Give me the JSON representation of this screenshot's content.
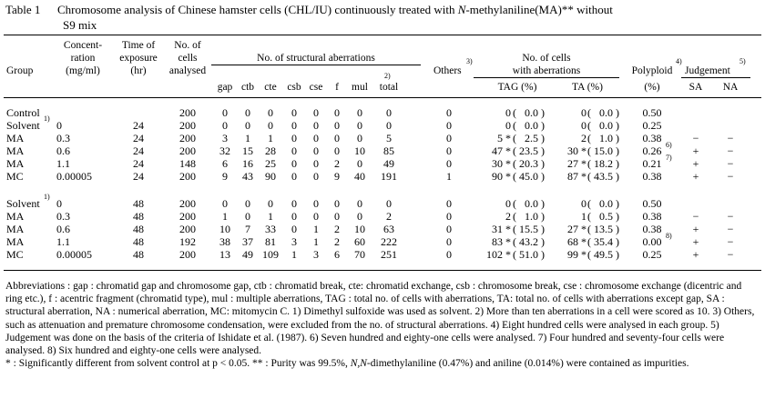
{
  "caption": {
    "label": "Table 1",
    "line1_a": "Chromosome analysis of Chinese hamster cells (CHL/IU) continuously treated with ",
    "line1_italic": "N",
    "line1_b": "-methylaniline(MA)** without",
    "line2": "S9 mix"
  },
  "headers": {
    "group": "Group",
    "conc1": "Concent-",
    "conc2": "ration",
    "conc3": "(mg/ml)",
    "time1": "Time of",
    "time2": "exposure",
    "time3": "(hr)",
    "cells1": "No. of",
    "cells2": "cells",
    "cells3": "analysed",
    "struct": "No. of structural aberrations",
    "gap": "gap",
    "ctb": "ctb",
    "cte": "cte",
    "csb": "csb",
    "cse": "cse",
    "f": "f",
    "mul": "mul",
    "mul_sup": "2)",
    "total": "total",
    "others": "Others",
    "others_sup": "3)",
    "nwa1": "No. of cells",
    "nwa2": "with aberrations",
    "tag": "TAG (%)",
    "ta": "TA (%)",
    "poly1": "Polyploid",
    "poly_sup": "4)",
    "poly2": "(%)",
    "judge": "Judgement",
    "judge_sup": "5)",
    "sa": "SA",
    "na": "NA"
  },
  "rows": [
    {
      "group": "Control",
      "sup": "",
      "conc": "",
      "time": "",
      "cells": "200",
      "gap": "0",
      "ctb": "0",
      "cte": "0",
      "csb": "0",
      "cse": "0",
      "f": "0",
      "mul": "0",
      "total": "0",
      "others": "0",
      "tag_n": "0",
      "tag_p": "(   0.0 )",
      "ta_n": "0",
      "ta_p": "(   0.0 )",
      "poly": "0.50",
      "poly_sup": "",
      "sa": "",
      "na": ""
    },
    {
      "group": "Solvent",
      "sup": "1)",
      "conc": "0",
      "time": "24",
      "cells": "200",
      "gap": "0",
      "ctb": "0",
      "cte": "0",
      "csb": "0",
      "cse": "0",
      "f": "0",
      "mul": "0",
      "total": "0",
      "others": "0",
      "tag_n": "0",
      "tag_p": "(   0.0 )",
      "ta_n": "0",
      "ta_p": "(   0.0 )",
      "poly": "0.25",
      "poly_sup": "",
      "sa": "",
      "na": ""
    },
    {
      "group": "MA",
      "sup": "",
      "conc": "0.3",
      "time": "24",
      "cells": "200",
      "gap": "3",
      "ctb": "1",
      "cte": "1",
      "csb": "0",
      "cse": "0",
      "f": "0",
      "mul": "0",
      "total": "5",
      "others": "0",
      "tag_n": "5 *",
      "tag_p": "(   2.5 )",
      "ta_n": "2",
      "ta_p": "(   1.0 )",
      "poly": "0.38",
      "poly_sup": "",
      "sa": "−",
      "na": "−"
    },
    {
      "group": "MA",
      "sup": "",
      "conc": "0.6",
      "time": "24",
      "cells": "200",
      "gap": "32",
      "ctb": "15",
      "cte": "28",
      "csb": "0",
      "cse": "0",
      "f": "0",
      "mul": "10",
      "total": "85",
      "others": "0",
      "tag_n": "47 *",
      "tag_p": "( 23.5 )",
      "ta_n": "30 *",
      "ta_p": "( 15.0 )",
      "poly": "0.26",
      "poly_sup": "6)",
      "sa": "+",
      "na": "−"
    },
    {
      "group": "MA",
      "sup": "",
      "conc": "1.1",
      "time": "24",
      "cells": "148",
      "gap": "6",
      "ctb": "16",
      "cte": "25",
      "csb": "0",
      "cse": "0",
      "f": "2",
      "mul": "0",
      "total": "49",
      "others": "0",
      "tag_n": "30 *",
      "tag_p": "( 20.3 )",
      "ta_n": "27 *",
      "ta_p": "( 18.2 )",
      "poly": "0.21",
      "poly_sup": "7)",
      "sa": "+",
      "na": "−"
    },
    {
      "group": "MC",
      "sup": "",
      "conc": "0.00005",
      "time": "24",
      "cells": "200",
      "gap": "9",
      "ctb": "43",
      "cte": "90",
      "csb": "0",
      "cse": "0",
      "f": "9",
      "mul": "40",
      "total": "191",
      "others": "1",
      "tag_n": "90 *",
      "tag_p": "( 45.0 )",
      "ta_n": "87 *",
      "ta_p": "( 43.5 )",
      "poly": "0.38",
      "poly_sup": "",
      "sa": "+",
      "na": "−"
    },
    {
      "group": "Solvent",
      "sup": "1)",
      "conc": "0",
      "time": "48",
      "cells": "200",
      "gap": "0",
      "ctb": "0",
      "cte": "0",
      "csb": "0",
      "cse": "0",
      "f": "0",
      "mul": "0",
      "total": "0",
      "others": "0",
      "tag_n": "0",
      "tag_p": "(   0.0 )",
      "ta_n": "0",
      "ta_p": "(   0.0 )",
      "poly": "0.50",
      "poly_sup": "",
      "sa": "",
      "na": ""
    },
    {
      "group": "MA",
      "sup": "",
      "conc": "0.3",
      "time": "48",
      "cells": "200",
      "gap": "1",
      "ctb": "0",
      "cte": "1",
      "csb": "0",
      "cse": "0",
      "f": "0",
      "mul": "0",
      "total": "2",
      "others": "0",
      "tag_n": "2",
      "tag_p": "(   1.0 )",
      "ta_n": "1",
      "ta_p": "(   0.5 )",
      "poly": "0.38",
      "poly_sup": "",
      "sa": "−",
      "na": "−"
    },
    {
      "group": "MA",
      "sup": "",
      "conc": "0.6",
      "time": "48",
      "cells": "200",
      "gap": "10",
      "ctb": "7",
      "cte": "33",
      "csb": "0",
      "cse": "1",
      "f": "2",
      "mul": "10",
      "total": "63",
      "others": "0",
      "tag_n": "31 *",
      "tag_p": "( 15.5 )",
      "ta_n": "27 *",
      "ta_p": "( 13.5 )",
      "poly": "0.38",
      "poly_sup": "",
      "sa": "+",
      "na": "−"
    },
    {
      "group": "MA",
      "sup": "",
      "conc": "1.1",
      "time": "48",
      "cells": "192",
      "gap": "38",
      "ctb": "37",
      "cte": "81",
      "csb": "3",
      "cse": "1",
      "f": "2",
      "mul": "60",
      "total": "222",
      "others": "0",
      "tag_n": "83 *",
      "tag_p": "( 43.2 )",
      "ta_n": "68 *",
      "ta_p": "( 35.4 )",
      "poly": "0.00",
      "poly_sup": "8)",
      "sa": "+",
      "na": "−"
    },
    {
      "group": "MC",
      "sup": "",
      "conc": "0.00005",
      "time": "48",
      "cells": "200",
      "gap": "13",
      "ctb": "49",
      "cte": "109",
      "csb": "1",
      "cse": "3",
      "f": "6",
      "mul": "70",
      "total": "251",
      "others": "0",
      "tag_n": "102 *",
      "tag_p": "( 51.0 )",
      "ta_n": "99 *",
      "ta_p": "( 49.5 )",
      "poly": "0.25",
      "poly_sup": "",
      "sa": "+",
      "na": "−"
    }
  ],
  "footnotes": {
    "text1": "Abbreviations  :  gap : chromatid gap and chromosome gap,  ctb : chromatid break,  cte: chromatid exchange,  csb : chromosome break, cse : chromosome exchange (dicentric and ring etc.),  f : acentric fragment (chromatid type),  mul : multiple aberrations,  TAG : total no. of cells with aberrations, TA: total no. of cells with aberrations except gap, SA : structural aberration, NA : numerical aberration,  MC: mitomycin C.    1) Dimethyl sulfoxide was used as solvent.    2) More than ten aberrations in a cell were scored as 10.    3) Others, such as attenuation and premature chromosome condensation, were excluded from the no. of structural aberrations.     4) Eight hundred cells were analysed in each group.     5) Judgement was done on the basis of the criteria of Ishidate et al. (1987).     6) Seven hundred and eighty-one cells were analysed.    7) Four hundred and seventy-four cells were analysed.     8) Six hundred and eighty-one cells were analysed.",
    "text2_a": "* : Significantly  different from solvent control at p < 0.05.    ** : Purity was 99.5%,  ",
    "text2_italic": "N,N",
    "text2_b": "-dimethylaniline (0.47%) and aniline (0.014%) were contained as impurities."
  }
}
